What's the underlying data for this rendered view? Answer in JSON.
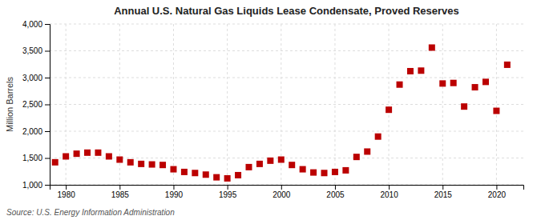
{
  "chart_data": {
    "type": "scatter",
    "title": "Annual U.S. Natural Gas Liquids Lease Condensate, Proved Reserves",
    "ylabel": "Million Barrels",
    "annotations": [
      "Source: U.S. Energy Information Administration"
    ],
    "x": [
      1979,
      1980,
      1981,
      1982,
      1983,
      1984,
      1985,
      1986,
      1987,
      1988,
      1989,
      1990,
      1991,
      1992,
      1993,
      1994,
      1995,
      1996,
      1997,
      1998,
      1999,
      2000,
      2001,
      2002,
      2003,
      2004,
      2005,
      2006,
      2007,
      2008,
      2009,
      2010,
      2011,
      2012,
      2013,
      2014,
      2015,
      2016,
      2017,
      2018,
      2019,
      2020,
      2021
    ],
    "values": [
      1420,
      1530,
      1580,
      1600,
      1600,
      1530,
      1470,
      1420,
      1390,
      1380,
      1370,
      1290,
      1240,
      1220,
      1190,
      1140,
      1120,
      1180,
      1330,
      1390,
      1450,
      1470,
      1370,
      1290,
      1230,
      1220,
      1240,
      1270,
      1520,
      1620,
      1900,
      2400,
      2870,
      3120,
      3130,
      3560,
      2890,
      2900,
      2460,
      2820,
      2920,
      2380,
      3240
    ],
    "color": "#bb0000",
    "marker": "square",
    "xlim": [
      1978.5,
      2022.5
    ],
    "xticks": [
      1980,
      1985,
      1990,
      1995,
      2000,
      2005,
      2010,
      2015,
      2020
    ],
    "ylim": [
      1000,
      4000
    ],
    "yticks": [
      {
        "value": 1000,
        "label": "1,000"
      },
      {
        "value": 1500,
        "label": "1,500"
      },
      {
        "value": 2000,
        "label": "2,000"
      },
      {
        "value": 2500,
        "label": "2,500"
      },
      {
        "value": 3000,
        "label": "3,000"
      },
      {
        "value": 3500,
        "label": "3,500"
      },
      {
        "value": 4000,
        "label": "4,000"
      }
    ],
    "grid": true
  }
}
